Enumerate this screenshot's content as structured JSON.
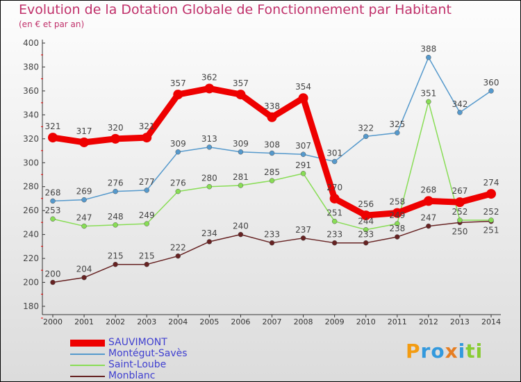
{
  "chart_data": {
    "type": "line",
    "title": "Evolution de la Dotation Globale de Fonctionnement par Habitant",
    "subtitle": "(en € et par an)",
    "x": [
      "2000",
      "2001",
      "2002",
      "2003",
      "2004",
      "2005",
      "2006",
      "2007",
      "2008",
      "2009",
      "2010",
      "2011",
      "2012",
      "2013",
      "2014"
    ],
    "ylim": [
      180,
      400
    ],
    "yticks": [
      "180",
      "200",
      "220",
      "240",
      "260",
      "280",
      "300",
      "320",
      "340",
      "360",
      "380",
      "400"
    ],
    "series": [
      {
        "name": "SAUVIMONT",
        "color": "#ee0000",
        "values": [
          321,
          317,
          320,
          321,
          357,
          362,
          357,
          338,
          354,
          270,
          256,
          258,
          268,
          267,
          274
        ]
      },
      {
        "name": "Montégut-Savès",
        "color": "#5599cc",
        "values": [
          268,
          269,
          276,
          277,
          309,
          313,
          309,
          308,
          307,
          301,
          322,
          325,
          388,
          342,
          360
        ]
      },
      {
        "name": "Saint-Loube",
        "color": "#88dd55",
        "values": [
          253,
          247,
          248,
          249,
          276,
          280,
          281,
          285,
          291,
          251,
          244,
          249,
          351,
          252,
          252
        ]
      },
      {
        "name": "Monblanc",
        "color": "#662222",
        "values": [
          200,
          204,
          215,
          215,
          222,
          234,
          240,
          233,
          237,
          233,
          233,
          238,
          247,
          250,
          251
        ]
      }
    ]
  },
  "logo": "Proxiti"
}
